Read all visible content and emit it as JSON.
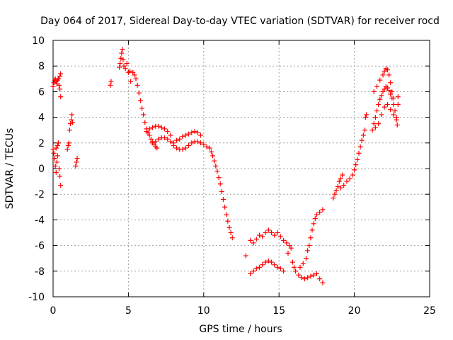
{
  "chart_data": {
    "type": "scatter",
    "title": "Day 064 of 2017, Sidereal Day-to-day VTEC variation (SDTVAR) for receiver rocd",
    "xlabel": "GPS time / hours",
    "ylabel": "SDTVAR / TECUs",
    "xlim": [
      0,
      25
    ],
    "ylim": [
      -10,
      10
    ],
    "x_ticks": [
      0,
      5,
      10,
      15,
      20,
      25
    ],
    "y_ticks": [
      -10,
      -8,
      -6,
      -4,
      -2,
      0,
      2,
      4,
      6,
      8,
      10
    ],
    "grid": true,
    "marker": "+",
    "color": "#ff0000",
    "series": [
      {
        "values": [
          [
            0.0,
            6.4
          ],
          [
            0.05,
            6.7
          ],
          [
            0.1,
            6.9
          ],
          [
            0.15,
            7.0
          ],
          [
            0.2,
            6.8
          ],
          [
            0.25,
            6.6
          ],
          [
            0.3,
            6.9
          ],
          [
            0.35,
            7.0
          ],
          [
            0.4,
            6.5
          ],
          [
            0.45,
            6.2
          ],
          [
            0.5,
            5.6
          ],
          [
            0.5,
            7.4
          ],
          [
            0.45,
            7.2
          ],
          [
            0.0,
            1.5
          ],
          [
            0.05,
            1.2
          ],
          [
            0.1,
            0.8
          ],
          [
            0.15,
            0.2
          ],
          [
            0.2,
            -0.3
          ],
          [
            0.25,
            0.5
          ],
          [
            0.3,
            1.8
          ],
          [
            0.35,
            2.0
          ],
          [
            0.4,
            0.0
          ],
          [
            0.45,
            -0.6
          ],
          [
            0.5,
            -1.3
          ],
          [
            0.3,
            1.0
          ],
          [
            0.2,
            1.6
          ],
          [
            0.95,
            1.5
          ],
          [
            1.0,
            1.8
          ],
          [
            1.05,
            2.0
          ],
          [
            1.1,
            3.0
          ],
          [
            1.15,
            3.5
          ],
          [
            1.2,
            3.8
          ],
          [
            1.25,
            4.2
          ],
          [
            1.3,
            3.6
          ],
          [
            1.5,
            0.2
          ],
          [
            1.55,
            0.5
          ],
          [
            1.6,
            0.8
          ],
          [
            3.8,
            6.5
          ],
          [
            3.85,
            6.8
          ],
          [
            4.4,
            7.9
          ],
          [
            4.45,
            8.2
          ],
          [
            4.5,
            8.6
          ],
          [
            4.55,
            9.0
          ],
          [
            4.6,
            9.3
          ],
          [
            4.65,
            8.5
          ],
          [
            4.7,
            8.0
          ],
          [
            4.8,
            7.8
          ],
          [
            4.9,
            8.2
          ],
          [
            5.0,
            7.5
          ],
          [
            5.1,
            7.6
          ],
          [
            5.15,
            6.8
          ],
          [
            5.3,
            7.5
          ],
          [
            5.4,
            7.3
          ],
          [
            5.5,
            7.0
          ],
          [
            5.6,
            6.5
          ],
          [
            5.7,
            5.9
          ],
          [
            5.8,
            5.3
          ],
          [
            5.9,
            4.7
          ],
          [
            6.0,
            4.2
          ],
          [
            6.1,
            3.6
          ],
          [
            6.2,
            3.1
          ],
          [
            6.3,
            2.8
          ],
          [
            6.4,
            2.6
          ],
          [
            6.5,
            2.3
          ],
          [
            6.6,
            2.1
          ],
          [
            6.7,
            1.9
          ],
          [
            6.8,
            1.7
          ],
          [
            6.9,
            1.6
          ],
          [
            6.2,
            2.9
          ],
          [
            6.4,
            3.1
          ],
          [
            6.6,
            3.2
          ],
          [
            6.8,
            3.3
          ],
          [
            7.0,
            3.3
          ],
          [
            7.2,
            3.2
          ],
          [
            7.4,
            3.1
          ],
          [
            7.6,
            2.9
          ],
          [
            7.8,
            2.6
          ],
          [
            6.6,
            2.0
          ],
          [
            6.8,
            2.1
          ],
          [
            7.0,
            2.3
          ],
          [
            7.2,
            2.4
          ],
          [
            7.4,
            2.4
          ],
          [
            7.6,
            2.3
          ],
          [
            7.8,
            2.1
          ],
          [
            8.0,
            1.8
          ],
          [
            8.2,
            1.6
          ],
          [
            8.4,
            1.5
          ],
          [
            8.6,
            1.5
          ],
          [
            8.8,
            1.6
          ],
          [
            9.0,
            1.8
          ],
          [
            9.2,
            2.0
          ],
          [
            9.4,
            2.1
          ],
          [
            9.6,
            2.1
          ],
          [
            8.0,
            2.0
          ],
          [
            8.2,
            2.2
          ],
          [
            8.4,
            2.3
          ],
          [
            8.6,
            2.5
          ],
          [
            8.8,
            2.6
          ],
          [
            9.0,
            2.7
          ],
          [
            9.2,
            2.8
          ],
          [
            9.4,
            2.9
          ],
          [
            9.6,
            2.8
          ],
          [
            9.8,
            2.6
          ],
          [
            9.8,
            2.0
          ],
          [
            10.0,
            1.9
          ],
          [
            10.2,
            1.7
          ],
          [
            10.4,
            1.6
          ],
          [
            10.5,
            1.3
          ],
          [
            10.6,
            1.0
          ],
          [
            10.7,
            0.6
          ],
          [
            10.8,
            0.2
          ],
          [
            10.9,
            -0.2
          ],
          [
            11.0,
            -0.7
          ],
          [
            11.1,
            -1.2
          ],
          [
            11.2,
            -1.8
          ],
          [
            11.3,
            -2.4
          ],
          [
            11.4,
            -3.0
          ],
          [
            11.5,
            -3.6
          ],
          [
            11.6,
            -4.1
          ],
          [
            11.7,
            -4.6
          ],
          [
            11.8,
            -5.0
          ],
          [
            11.9,
            -5.4
          ],
          [
            12.8,
            -6.8
          ],
          [
            13.1,
            -5.6
          ],
          [
            13.3,
            -5.8
          ],
          [
            13.5,
            -5.5
          ],
          [
            13.7,
            -5.2
          ],
          [
            13.9,
            -5.3
          ],
          [
            14.1,
            -5.0
          ],
          [
            14.3,
            -4.8
          ],
          [
            14.5,
            -5.0
          ],
          [
            14.7,
            -5.2
          ],
          [
            14.9,
            -5.0
          ],
          [
            15.1,
            -5.3
          ],
          [
            15.3,
            -5.6
          ],
          [
            15.5,
            -5.8
          ],
          [
            15.7,
            -6.0
          ],
          [
            13.1,
            -8.2
          ],
          [
            13.3,
            -8.0
          ],
          [
            13.5,
            -7.8
          ],
          [
            13.7,
            -7.7
          ],
          [
            13.9,
            -7.5
          ],
          [
            14.1,
            -7.3
          ],
          [
            14.3,
            -7.2
          ],
          [
            14.5,
            -7.3
          ],
          [
            14.7,
            -7.5
          ],
          [
            14.9,
            -7.7
          ],
          [
            15.1,
            -7.8
          ],
          [
            15.3,
            -8.0
          ],
          [
            15.6,
            -6.6
          ],
          [
            15.8,
            -6.2
          ],
          [
            15.9,
            -7.3
          ],
          [
            16.0,
            -7.7
          ],
          [
            16.1,
            -8.0
          ],
          [
            16.3,
            -8.3
          ],
          [
            16.5,
            -8.5
          ],
          [
            16.7,
            -8.6
          ],
          [
            16.9,
            -8.5
          ],
          [
            17.1,
            -8.4
          ],
          [
            16.4,
            -7.7
          ],
          [
            16.6,
            -7.4
          ],
          [
            16.8,
            -7.0
          ],
          [
            16.9,
            -6.4
          ],
          [
            17.0,
            -6.0
          ],
          [
            17.1,
            -5.4
          ],
          [
            17.2,
            -4.8
          ],
          [
            17.3,
            -4.3
          ],
          [
            17.4,
            -3.9
          ],
          [
            17.5,
            -3.6
          ],
          [
            17.7,
            -3.4
          ],
          [
            17.9,
            -3.2
          ],
          [
            17.3,
            -8.3
          ],
          [
            17.5,
            -8.2
          ],
          [
            17.7,
            -8.6
          ],
          [
            17.9,
            -8.9
          ],
          [
            18.6,
            -2.3
          ],
          [
            18.7,
            -2.0
          ],
          [
            18.8,
            -1.7
          ],
          [
            18.9,
            -1.4
          ],
          [
            19.0,
            -1.0
          ],
          [
            19.1,
            -0.8
          ],
          [
            19.2,
            -0.5
          ],
          [
            19.1,
            -1.5
          ],
          [
            19.3,
            -1.3
          ],
          [
            19.5,
            -1.0
          ],
          [
            19.7,
            -0.8
          ],
          [
            19.9,
            -0.5
          ],
          [
            20.0,
            -0.1
          ],
          [
            20.1,
            0.3
          ],
          [
            20.2,
            0.7
          ],
          [
            20.3,
            1.2
          ],
          [
            20.4,
            1.7
          ],
          [
            20.5,
            2.2
          ],
          [
            20.6,
            2.6
          ],
          [
            20.7,
            3.0
          ],
          [
            20.75,
            4.0
          ],
          [
            20.8,
            4.2
          ],
          [
            21.2,
            3.0
          ],
          [
            21.3,
            3.5
          ],
          [
            21.4,
            4.0
          ],
          [
            21.5,
            4.5
          ],
          [
            21.6,
            5.0
          ],
          [
            21.7,
            5.4
          ],
          [
            21.8,
            5.7
          ],
          [
            21.9,
            6.0
          ],
          [
            22.0,
            6.2
          ],
          [
            22.1,
            6.4
          ],
          [
            22.2,
            6.3
          ],
          [
            22.3,
            6.1
          ],
          [
            22.4,
            5.8
          ],
          [
            22.5,
            5.5
          ],
          [
            22.6,
            5.0
          ],
          [
            22.7,
            4.5
          ],
          [
            22.8,
            4.0
          ],
          [
            22.85,
            3.4
          ],
          [
            21.3,
            6.0
          ],
          [
            21.5,
            6.4
          ],
          [
            21.7,
            6.9
          ],
          [
            21.9,
            7.3
          ],
          [
            22.0,
            7.6
          ],
          [
            22.1,
            7.8
          ],
          [
            22.2,
            7.7
          ],
          [
            22.3,
            7.3
          ],
          [
            22.4,
            6.7
          ],
          [
            22.5,
            6.0
          ],
          [
            22.6,
            5.5
          ],
          [
            21.4,
            3.2
          ],
          [
            21.6,
            3.5
          ],
          [
            21.8,
            4.2
          ],
          [
            22.0,
            4.8
          ],
          [
            22.2,
            5.0
          ],
          [
            22.4,
            4.6
          ],
          [
            22.6,
            4.2
          ],
          [
            22.8,
            3.8
          ],
          [
            22.9,
            5.0
          ],
          [
            22.9,
            5.6
          ]
        ]
      }
    ]
  }
}
